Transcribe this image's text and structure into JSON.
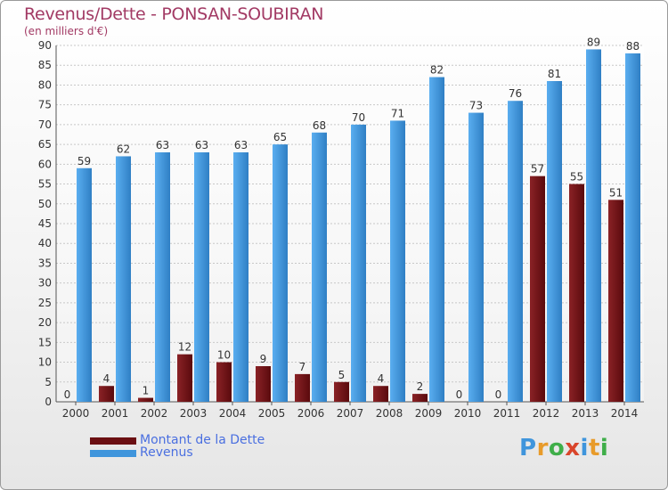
{
  "chart_data": {
    "type": "bar",
    "title": "Revenus/Dette - PONSAN-SOUBIRAN",
    "subtitle": "(en milliers d'€)",
    "categories": [
      "2000",
      "2001",
      "2002",
      "2003",
      "2004",
      "2005",
      "2006",
      "2007",
      "2008",
      "2009",
      "2010",
      "2011",
      "2012",
      "2013",
      "2014"
    ],
    "series": [
      {
        "name": "Montant de la Dette",
        "color": "#6b0f12",
        "values": [
          0,
          4,
          1,
          12,
          10,
          9,
          7,
          5,
          4,
          2,
          0,
          0,
          57,
          55,
          51
        ]
      },
      {
        "name": "Revenus",
        "color": "#3f95dc",
        "values": [
          59,
          62,
          63,
          63,
          63,
          65,
          68,
          70,
          71,
          82,
          73,
          76,
          81,
          89,
          88
        ]
      }
    ],
    "ylim": [
      0,
      90
    ],
    "yticks": [
      0,
      5,
      10,
      15,
      20,
      25,
      30,
      35,
      40,
      45,
      50,
      55,
      60,
      65,
      70,
      75,
      80,
      85,
      90
    ],
    "grid": true,
    "legend_position": "bottom-left"
  },
  "logo": {
    "text": "Proxiti"
  }
}
